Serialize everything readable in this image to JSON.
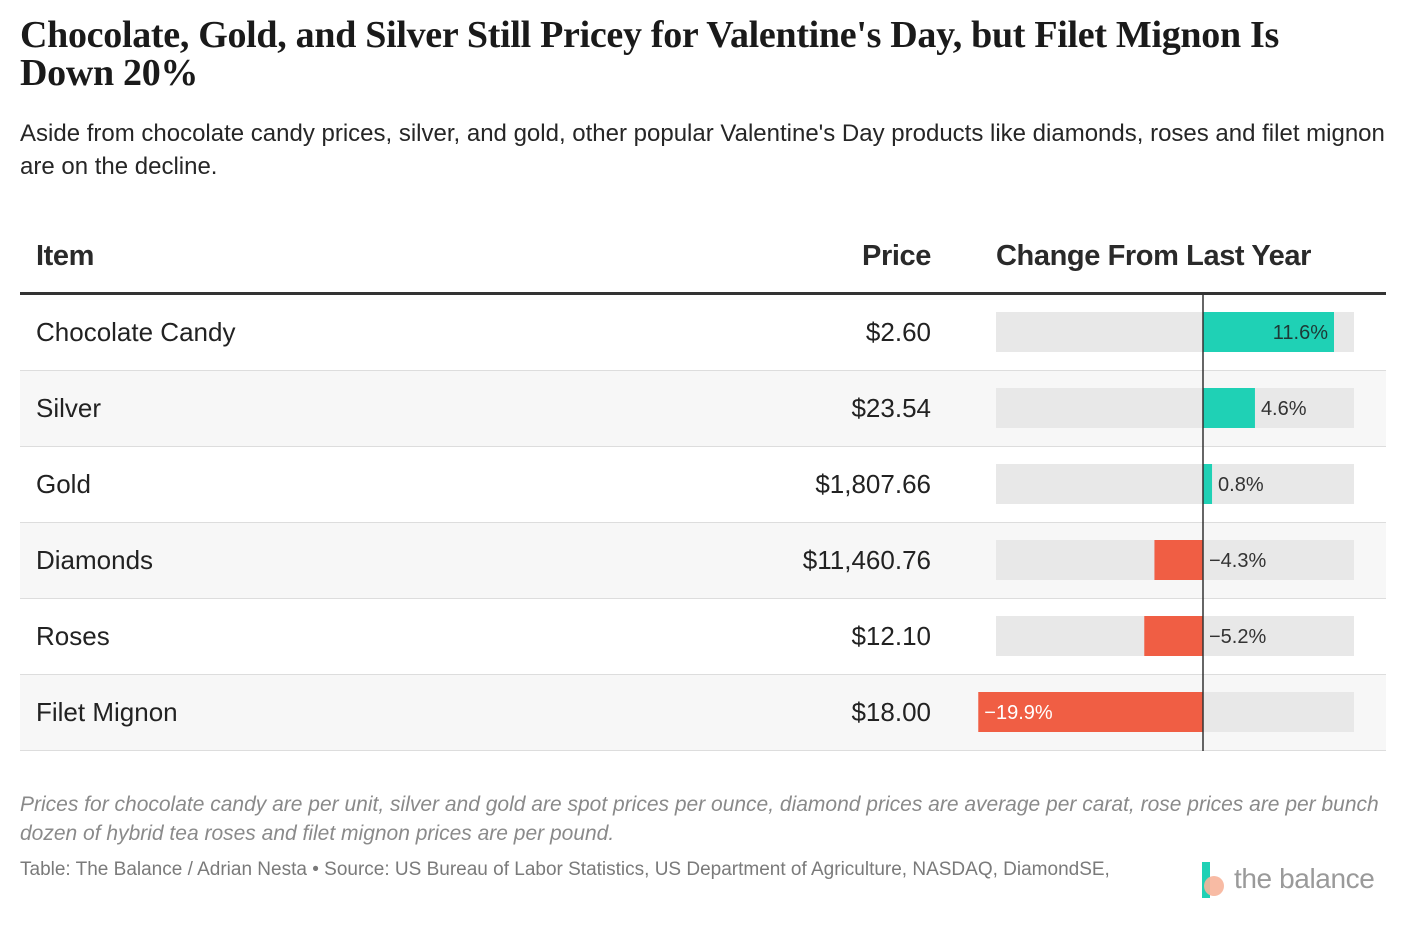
{
  "title": "Chocolate, Gold, and Silver Still Pricey for Valentine's Day, but Filet Mignon Is Down 20%",
  "subtitle": "Aside from chocolate candy prices, silver, and gold, other popular Valentine's Day products like diamonds, roses and filet mignon are on the decline.",
  "table": {
    "headers": {
      "item": "Item",
      "price": "Price",
      "change": "Change From Last Year"
    }
  },
  "colors": {
    "positive": "#1fd1b5",
    "negative": "#f05e44",
    "bar_track": "#e8e8e8",
    "axis": "#333333"
  },
  "chart_data": {
    "type": "table",
    "title": "Chocolate, Gold, and Silver Still Pricey for Valentine's Day, but Filet Mignon Is Down 20%",
    "columns": [
      "Item",
      "Price",
      "Change From Last Year"
    ],
    "change_range": [
      -19.9,
      11.6
    ],
    "rows": [
      {
        "item": "Chocolate Candy",
        "price": "$2.60",
        "change": 11.6,
        "change_label": "11.6%"
      },
      {
        "item": "Silver",
        "price": "$23.54",
        "change": 4.6,
        "change_label": "4.6%"
      },
      {
        "item": "Gold",
        "price": "$1,807.66",
        "change": 0.8,
        "change_label": "0.8%"
      },
      {
        "item": "Diamonds",
        "price": "$11,460.76",
        "change": -4.3,
        "change_label": "−4.3%"
      },
      {
        "item": "Roses",
        "price": "$12.10",
        "change": -5.2,
        "change_label": "−5.2%"
      },
      {
        "item": "Filet Mignon",
        "price": "$18.00",
        "change": -19.9,
        "change_label": "−19.9%"
      }
    ]
  },
  "notes": "Prices for chocolate candy are per unit, silver and gold are spot prices per ounce, diamond prices are average per carat, rose prices are per bunch dozen of hybrid tea roses and filet mignon prices are per pound.",
  "source": "Table: The Balance / Adrian Nesta • Source: US Bureau of Labor Statistics, US Department of Agriculture, NASDAQ, DiamondSE,",
  "logo": {
    "text": "the balance",
    "icon": "the-balance-logo-icon"
  }
}
